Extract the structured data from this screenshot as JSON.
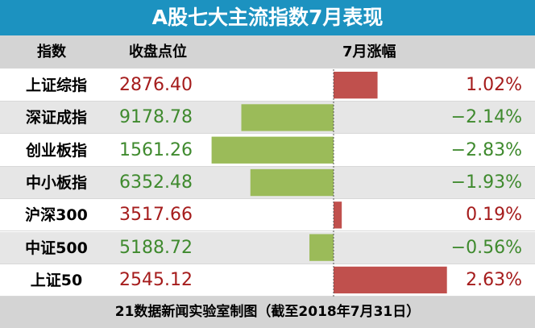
{
  "title": "A股七大主流指数7月表现",
  "headers": {
    "index": "指数",
    "close": "收盘点位",
    "change": "7月涨幅"
  },
  "footer": "21数据新闻实验室制图（截至2018年7月31日）",
  "colors": {
    "title_bg": "#1c92c0",
    "positive": "#c0504d",
    "negative": "#9bbb59",
    "positive_text": "#a51c1c",
    "negative_text": "#3f8a2e"
  },
  "chart_data": {
    "type": "bar",
    "title": "A股七大主流指数7月表现",
    "categories": [
      "上证综指",
      "深证成指",
      "创业板指",
      "中小板指",
      "沪深300",
      "中证500",
      "上证50"
    ],
    "close_values": [
      "2876.40",
      "9178.78",
      "1561.26",
      "6352.48",
      "3517.66",
      "5188.72",
      "2545.12"
    ],
    "values": [
      1.02,
      -2.14,
      -2.83,
      -1.93,
      0.19,
      -0.56,
      2.63
    ],
    "change_labels": [
      "1.02%",
      "−2.14%",
      "−2.83%",
      "−1.93%",
      "0.19%",
      "−0.56%",
      "2.63%"
    ],
    "xlim": [
      -3,
      3
    ],
    "grid": false,
    "legend": "none"
  }
}
